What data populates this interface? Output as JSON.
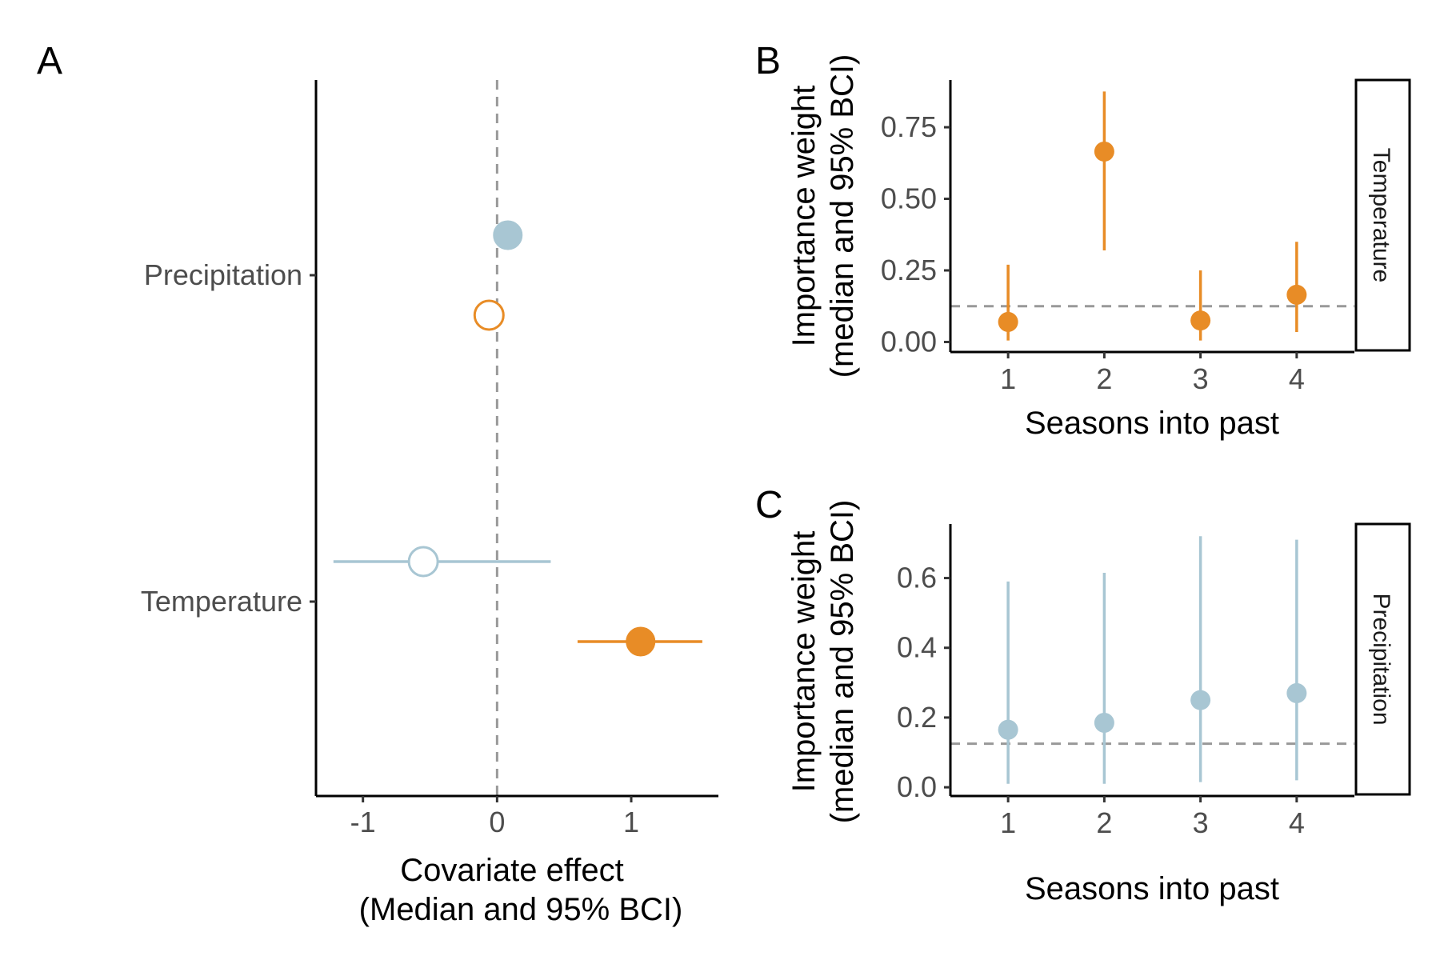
{
  "colors": {
    "temperature": "#E88C26",
    "precipitation": "#A8C6D3",
    "reference_line": "#999999",
    "axis": "#000000"
  },
  "panels": {
    "A": {
      "letter": "A",
      "xlabel_line1": "Covariate effect",
      "xlabel_line2": "(Median and 95% BCI)"
    },
    "B": {
      "letter": "B",
      "ylabel_line1": "Importance weight",
      "ylabel_line2": "(median and 95% BCI)",
      "xlabel": "Seasons into past",
      "strip": "Temperature"
    },
    "C": {
      "letter": "C",
      "ylabel_line1": "Importance weight",
      "ylabel_line2": "(median and 95% BCI)",
      "xlabel": "Seasons into past",
      "strip": "Precipitation"
    }
  },
  "chart_data": [
    {
      "panel": "A",
      "type": "scatter",
      "categories": [
        "Precipitation",
        "Temperature"
      ],
      "x_ticks": [
        -1,
        0,
        1
      ],
      "x_tick_labels": [
        "-1",
        "0",
        "1"
      ],
      "xlim": [
        -1.35,
        1.65
      ],
      "reference_line_x": 0,
      "series": [
        {
          "color_key": "precipitation",
          "points": [
            {
              "category": "Precipitation",
              "median": 0.08,
              "lower": 0.08,
              "upper": 0.08,
              "filled": true
            },
            {
              "category": "Temperature",
              "median": -0.55,
              "lower": -1.22,
              "upper": 0.4,
              "filled": false
            }
          ]
        },
        {
          "color_key": "temperature",
          "points": [
            {
              "category": "Precipitation",
              "median": -0.06,
              "lower": -0.06,
              "upper": -0.06,
              "filled": false
            },
            {
              "category": "Temperature",
              "median": 1.07,
              "lower": 0.6,
              "upper": 1.53,
              "filled": true
            }
          ]
        }
      ]
    },
    {
      "panel": "B",
      "type": "scatter",
      "color_key": "temperature",
      "x": [
        1,
        2,
        3,
        4
      ],
      "x_tick_labels": [
        "1",
        "2",
        "3",
        "4"
      ],
      "median": [
        0.07,
        0.665,
        0.075,
        0.165
      ],
      "lower": [
        0.005,
        0.32,
        0.005,
        0.035
      ],
      "upper": [
        0.27,
        0.875,
        0.25,
        0.35
      ],
      "y_ticks": [
        0,
        0.25,
        0.5,
        0.75
      ],
      "y_tick_labels": [
        "0.00",
        "0.25",
        "0.50",
        "0.75"
      ],
      "ylim": [
        -0.035,
        0.915
      ],
      "reference_line_y": 0.125
    },
    {
      "panel": "C",
      "type": "scatter",
      "color_key": "precipitation",
      "x": [
        1,
        2,
        3,
        4
      ],
      "x_tick_labels": [
        "1",
        "2",
        "3",
        "4"
      ],
      "median": [
        0.165,
        0.185,
        0.25,
        0.27
      ],
      "lower": [
        0.01,
        0.01,
        0.015,
        0.02
      ],
      "upper": [
        0.59,
        0.615,
        0.72,
        0.71
      ],
      "y_ticks": [
        0,
        0.2,
        0.4,
        0.6
      ],
      "y_tick_labels": [
        "0.0",
        "0.2",
        "0.4",
        "0.6"
      ],
      "ylim": [
        -0.025,
        0.755
      ],
      "reference_line_y": 0.125
    }
  ]
}
